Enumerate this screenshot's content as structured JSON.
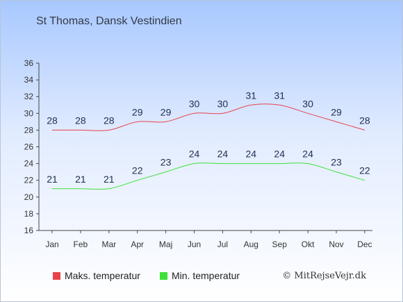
{
  "title": "St Thomas, Dansk Vestindien",
  "copyright": "© MitRejseVejr.dk",
  "chart_data": {
    "type": "line",
    "categories": [
      "Jan",
      "Feb",
      "Mar",
      "Apr",
      "Maj",
      "Jun",
      "Jul",
      "Aug",
      "Sep",
      "Okt",
      "Nov",
      "Dec"
    ],
    "ylim": [
      16,
      36
    ],
    "yticks": [
      16,
      18,
      20,
      22,
      24,
      26,
      28,
      30,
      32,
      34,
      36
    ],
    "grid": false,
    "legend_position": "bottom",
    "series": [
      {
        "name": "Maks. temperatur",
        "color": "#e8424a",
        "values": [
          28,
          28,
          28,
          29,
          29,
          30,
          30,
          31,
          31,
          30,
          29,
          28
        ]
      },
      {
        "name": "Min. temperatur",
        "color": "#3ee03a",
        "values": [
          21,
          21,
          21,
          22,
          23,
          24,
          24,
          24,
          24,
          24,
          23,
          22
        ]
      }
    ]
  }
}
